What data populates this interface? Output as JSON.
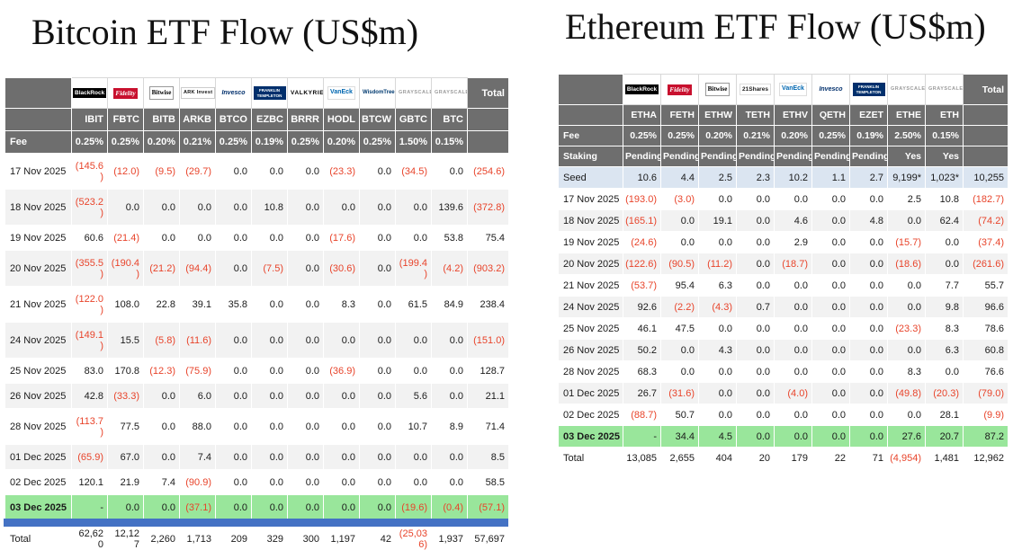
{
  "colors": {
    "header_bg": "#6e6e6e",
    "negative": "#e8442b",
    "green_row": "#99e69b",
    "seed_row": "#dbe5f1",
    "alt_row": "#f2f2f2",
    "bottom_bar": "#4472c4",
    "title_color": "#111111"
  },
  "chart_data": [
    {
      "type": "table",
      "key": "bitcoin",
      "title": "Bitcoin ETF Flow (US$m)",
      "fee_label": "Fee",
      "total_label": "Total",
      "issuers": [
        {
          "name": "BlackRock",
          "style": "blackrock"
        },
        {
          "name": "Fidelity",
          "style": "fidelity"
        },
        {
          "name": "Bitwise",
          "style": "bitwise"
        },
        {
          "name": "ARK Invest",
          "style": "ark"
        },
        {
          "name": "Invesco",
          "style": "invesco"
        },
        {
          "name": "FRANKLIN TEMPLETON",
          "style": "franklin"
        },
        {
          "name": "VALKYRIE",
          "style": "valkyrie"
        },
        {
          "name": "VanEck",
          "style": "vaneck"
        },
        {
          "name": "WisdomTree",
          "style": "wisdomtree"
        },
        {
          "name": "GRAYSCALE",
          "style": "grayscale"
        },
        {
          "name": "GRAYSCALE",
          "style": "grayscale"
        }
      ],
      "tickers": [
        "IBIT",
        "FBTC",
        "BITB",
        "ARKB",
        "BTCO",
        "EZBC",
        "BRRR",
        "HODL",
        "BTCW",
        "GBTC",
        "BTC"
      ],
      "fees": [
        "0.25%",
        "0.25%",
        "0.20%",
        "0.21%",
        "0.25%",
        "0.19%",
        "0.25%",
        "0.20%",
        "0.25%",
        "1.50%",
        "0.15%"
      ],
      "rows": [
        {
          "date": "17 Nov 2025",
          "values": [
            "(145.6)",
            "(12.0)",
            "(9.5)",
            "(29.7)",
            "0.0",
            "0.0",
            "0.0",
            "(23.3)",
            "0.0",
            "(34.5)",
            "0.0"
          ],
          "total": "(254.6)"
        },
        {
          "date": "18 Nov 2025",
          "values": [
            "(523.2)",
            "0.0",
            "0.0",
            "0.0",
            "0.0",
            "10.8",
            "0.0",
            "0.0",
            "0.0",
            "0.0",
            "139.6"
          ],
          "total": "(372.8)"
        },
        {
          "date": "19 Nov 2025",
          "values": [
            "60.6",
            "(21.4)",
            "0.0",
            "0.0",
            "0.0",
            "0.0",
            "0.0",
            "(17.6)",
            "0.0",
            "0.0",
            "53.8"
          ],
          "total": "75.4"
        },
        {
          "date": "20 Nov 2025",
          "values": [
            "(355.5)",
            "(190.4)",
            "(21.2)",
            "(94.4)",
            "0.0",
            "(7.5)",
            "0.0",
            "(30.6)",
            "0.0",
            "(199.4)",
            "(4.2)"
          ],
          "total": "(903.2)"
        },
        {
          "date": "21 Nov 2025",
          "values": [
            "(122.0)",
            "108.0",
            "22.8",
            "39.1",
            "35.8",
            "0.0",
            "0.0",
            "8.3",
            "0.0",
            "61.5",
            "84.9"
          ],
          "total": "238.4"
        },
        {
          "date": "24 Nov 2025",
          "values": [
            "(149.1)",
            "15.5",
            "(5.8)",
            "(11.6)",
            "0.0",
            "0.0",
            "0.0",
            "0.0",
            "0.0",
            "0.0",
            "0.0"
          ],
          "total": "(151.0)"
        },
        {
          "date": "25 Nov 2025",
          "values": [
            "83.0",
            "170.8",
            "(12.3)",
            "(75.9)",
            "0.0",
            "0.0",
            "0.0",
            "(36.9)",
            "0.0",
            "0.0",
            "0.0"
          ],
          "total": "128.7"
        },
        {
          "date": "26 Nov 2025",
          "values": [
            "42.8",
            "(33.3)",
            "0.0",
            "6.0",
            "0.0",
            "0.0",
            "0.0",
            "0.0",
            "0.0",
            "5.6",
            "0.0"
          ],
          "total": "21.1"
        },
        {
          "date": "28 Nov 2025",
          "values": [
            "(113.7)",
            "77.5",
            "0.0",
            "88.0",
            "0.0",
            "0.0",
            "0.0",
            "0.0",
            "0.0",
            "10.7",
            "8.9"
          ],
          "total": "71.4"
        },
        {
          "date": "01 Dec 2025",
          "values": [
            "(65.9)",
            "67.0",
            "0.0",
            "7.4",
            "0.0",
            "0.0",
            "0.0",
            "0.0",
            "0.0",
            "0.0",
            "0.0"
          ],
          "total": "8.5"
        },
        {
          "date": "02 Dec 2025",
          "values": [
            "120.1",
            "21.9",
            "7.4",
            "(90.9)",
            "0.0",
            "0.0",
            "0.0",
            "0.0",
            "0.0",
            "0.0",
            "0.0"
          ],
          "total": "58.5"
        },
        {
          "date": "03 Dec 2025",
          "kind": "green",
          "values": [
            "-",
            "0.0",
            "0.0",
            "(37.1)",
            "0.0",
            "0.0",
            "0.0",
            "0.0",
            "0.0",
            "(19.6)",
            "(0.4)"
          ],
          "total": "(57.1)"
        }
      ],
      "total_row": {
        "label": "Total",
        "values": [
          "62,620",
          "12,127",
          "2,260",
          "1,713",
          "209",
          "329",
          "300",
          "1,197",
          "42",
          "(25,036)",
          "1,937"
        ],
        "total": "57,697"
      }
    },
    {
      "type": "table",
      "key": "ethereum",
      "title": "Ethereum ETF Flow (US$m)",
      "fee_label": "Fee",
      "staking_label": "Staking",
      "total_label": "Total",
      "issuers": [
        {
          "name": "BlackRock",
          "style": "blackrock"
        },
        {
          "name": "Fidelity",
          "style": "fidelity"
        },
        {
          "name": "Bitwise",
          "style": "bitwise"
        },
        {
          "name": "21Shares",
          "style": "shares21"
        },
        {
          "name": "VanEck",
          "style": "vaneck"
        },
        {
          "name": "Invesco",
          "style": "invesco"
        },
        {
          "name": "FRANKLIN TEMPLETON",
          "style": "franklin"
        },
        {
          "name": "GRAYSCALE",
          "style": "grayscale"
        },
        {
          "name": "GRAYSCALE",
          "style": "grayscale"
        }
      ],
      "tickers": [
        "ETHA",
        "FETH",
        "ETHW",
        "TETH",
        "ETHV",
        "QETH",
        "EZET",
        "ETHE",
        "ETH"
      ],
      "fees": [
        "0.25%",
        "0.25%",
        "0.20%",
        "0.21%",
        "0.20%",
        "0.25%",
        "0.19%",
        "2.50%",
        "0.15%"
      ],
      "staking": [
        "Pending",
        "Pending",
        "Pending",
        "Pending",
        "Pending",
        "Pending",
        "Pending",
        "Yes",
        "Yes"
      ],
      "rows": [
        {
          "date": "Seed",
          "kind": "seed",
          "values": [
            "10.6",
            "4.4",
            "2.5",
            "2.3",
            "10.2",
            "1.1",
            "2.7",
            "9,199*",
            "1,023*"
          ],
          "total": "10,255"
        },
        {
          "date": "17 Nov 2025",
          "values": [
            "(193.0)",
            "(3.0)",
            "0.0",
            "0.0",
            "0.0",
            "0.0",
            "0.0",
            "2.5",
            "10.8"
          ],
          "total": "(182.7)"
        },
        {
          "date": "18 Nov 2025",
          "values": [
            "(165.1)",
            "0.0",
            "19.1",
            "0.0",
            "4.6",
            "0.0",
            "4.8",
            "0.0",
            "62.4"
          ],
          "total": "(74.2)"
        },
        {
          "date": "19 Nov 2025",
          "values": [
            "(24.6)",
            "0.0",
            "0.0",
            "0.0",
            "2.9",
            "0.0",
            "0.0",
            "(15.7)",
            "0.0"
          ],
          "total": "(37.4)"
        },
        {
          "date": "20 Nov 2025",
          "values": [
            "(122.6)",
            "(90.5)",
            "(11.2)",
            "0.0",
            "(18.7)",
            "0.0",
            "0.0",
            "(18.6)",
            "0.0"
          ],
          "total": "(261.6)"
        },
        {
          "date": "21 Nov 2025",
          "values": [
            "(53.7)",
            "95.4",
            "6.3",
            "0.0",
            "0.0",
            "0.0",
            "0.0",
            "0.0",
            "7.7"
          ],
          "total": "55.7"
        },
        {
          "date": "24 Nov 2025",
          "values": [
            "92.6",
            "(2.2)",
            "(4.3)",
            "0.7",
            "0.0",
            "0.0",
            "0.0",
            "0.0",
            "9.8"
          ],
          "total": "96.6"
        },
        {
          "date": "25 Nov 2025",
          "values": [
            "46.1",
            "47.5",
            "0.0",
            "0.0",
            "0.0",
            "0.0",
            "0.0",
            "(23.3)",
            "8.3"
          ],
          "total": "78.6"
        },
        {
          "date": "26 Nov 2025",
          "values": [
            "50.2",
            "0.0",
            "4.3",
            "0.0",
            "0.0",
            "0.0",
            "0.0",
            "0.0",
            "6.3"
          ],
          "total": "60.8"
        },
        {
          "date": "28 Nov 2025",
          "values": [
            "68.3",
            "0.0",
            "0.0",
            "0.0",
            "0.0",
            "0.0",
            "0.0",
            "8.3",
            "0.0"
          ],
          "total": "76.6"
        },
        {
          "date": "01 Dec 2025",
          "values": [
            "26.7",
            "(31.6)",
            "0.0",
            "0.0",
            "(4.0)",
            "0.0",
            "0.0",
            "(49.8)",
            "(20.3)"
          ],
          "total": "(79.0)"
        },
        {
          "date": "02 Dec 2025",
          "values": [
            "(88.7)",
            "50.7",
            "0.0",
            "0.0",
            "0.0",
            "0.0",
            "0.0",
            "0.0",
            "28.1"
          ],
          "total": "(9.9)"
        },
        {
          "date": "03 Dec 2025",
          "kind": "green",
          "values": [
            "-",
            "34.4",
            "4.5",
            "0.0",
            "0.0",
            "0.0",
            "0.0",
            "27.6",
            "20.7"
          ],
          "total": "87.2"
        }
      ],
      "total_row": {
        "label": "Total",
        "values": [
          "13,085",
          "2,655",
          "404",
          "20",
          "179",
          "22",
          "71",
          "(4,954)",
          "1,481"
        ],
        "total": "12,962"
      }
    }
  ]
}
